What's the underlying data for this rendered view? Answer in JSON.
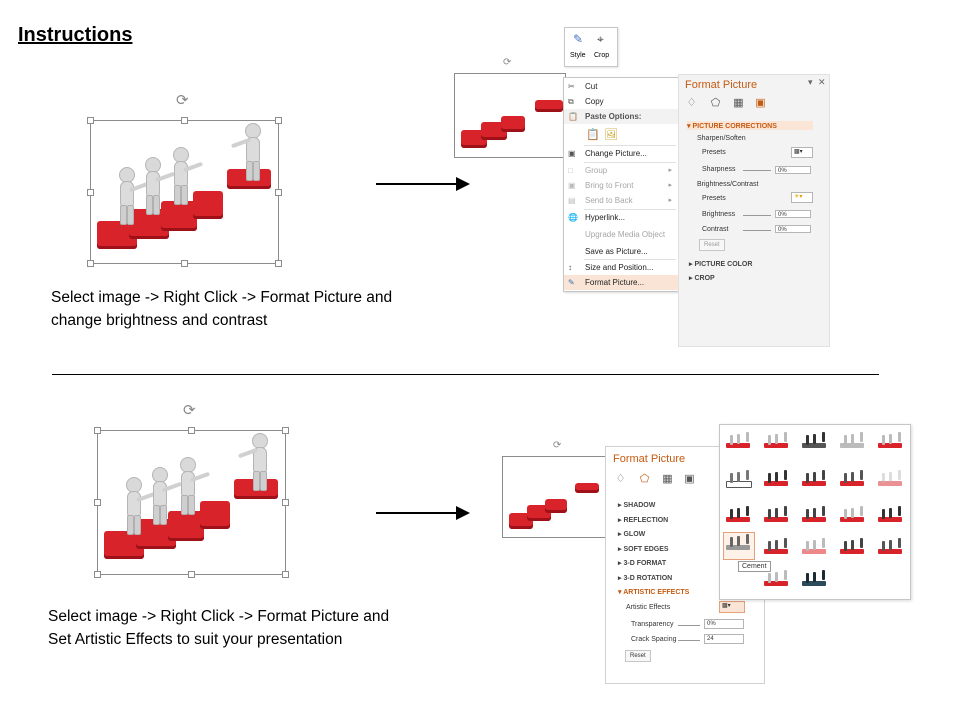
{
  "title": "Instructions",
  "step1": {
    "caption": "Select image -> Right Click -> Format Picture and change brightness and contrast",
    "mini_toolbar": {
      "style_label": "Style",
      "crop_label": "Crop"
    },
    "context_menu": {
      "items": [
        {
          "label": "Cut",
          "icon": "scissors-icon",
          "state": "enabled"
        },
        {
          "label": "Copy",
          "icon": "copy-icon",
          "state": "enabled"
        },
        {
          "label": "Paste Options:",
          "icon": "paste-icon",
          "state": "header"
        },
        {
          "label": "Change Picture...",
          "icon": "change-picture-icon",
          "state": "enabled"
        },
        {
          "label": "Group",
          "icon": "group-icon",
          "state": "disabled",
          "submenu": true
        },
        {
          "label": "Bring to Front",
          "icon": "bring-front-icon",
          "state": "disabled",
          "submenu": true
        },
        {
          "label": "Send to Back",
          "icon": "send-back-icon",
          "state": "disabled",
          "submenu": true
        },
        {
          "label": "Hyperlink...",
          "icon": "hyperlink-icon",
          "state": "enabled"
        },
        {
          "label": "Upgrade Media Object",
          "icon": "",
          "state": "disabled"
        },
        {
          "label": "Save as Picture...",
          "icon": "",
          "state": "enabled"
        },
        {
          "label": "Size and Position...",
          "icon": "size-position-icon",
          "state": "enabled"
        },
        {
          "label": "Format Picture...",
          "icon": "format-picture-icon",
          "state": "highlighted"
        }
      ]
    },
    "format_pane": {
      "title": "Format Picture",
      "sections": {
        "picture_corrections": "PICTURE CORRECTIONS",
        "sharpen_soften": "Sharpen/Soften",
        "presets_label": "Presets",
        "sharpness_label": "Sharpness",
        "sharpness_value": "0%",
        "brightness_contrast": "Brightness/Contrast",
        "presets2_label": "Presets",
        "brightness_label": "Brightness",
        "brightness_value": "0%",
        "contrast_label": "Contrast",
        "contrast_value": "0%",
        "reset_label": "Reset",
        "picture_color": "PICTURE COLOR",
        "crop": "CROP"
      }
    }
  },
  "step2": {
    "caption": "Select image -> Right Click -> Format Picture and Set Artistic Effects to suit your presentation",
    "format_pane": {
      "title": "Format Picture",
      "sections": [
        "SHADOW",
        "REFLECTION",
        "GLOW",
        "SOFT EDGES",
        "3-D FORMAT",
        "3-D ROTATION"
      ],
      "artistic_effects": "ARTISTIC EFFECTS",
      "artistic_effects_label": "Artistic Effects",
      "transparency_label": "Transparency",
      "transparency_value": "0%",
      "crack_spacing_label": "Crack Spacing",
      "crack_spacing_value": "24",
      "reset_label": "Reset"
    },
    "gallery_tooltip": "Cement"
  },
  "colors": {
    "accent": "#c55a11",
    "puzzle": "#d8232a",
    "highlight": "#f9e4d5"
  }
}
